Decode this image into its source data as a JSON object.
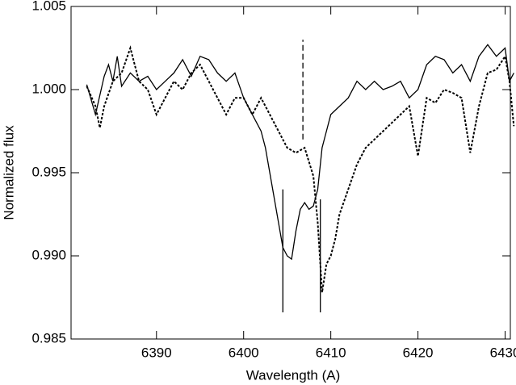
{
  "chart_data": {
    "type": "line",
    "xlabel": "Wavelength (A)",
    "ylabel": "Normalized flux",
    "xlim": [
      6380.2,
      6430.6
    ],
    "ylim": [
      0.985,
      1.005
    ],
    "xticks": [
      6390,
      6400,
      6410,
      6420,
      6430
    ],
    "yticks": [
      0.985,
      {
        "value": 0.99,
        "label": "0.990"
      },
      0.995,
      {
        "value": 1.0,
        "label": "1.000"
      },
      1.005
    ],
    "series": [
      {
        "color": "#000000",
        "style": "solid",
        "x": [
          6382,
          6383,
          6384,
          6384.5,
          6385,
          6385.5,
          6386,
          6387,
          6388,
          6389,
          6390,
          6391,
          6392,
          6393,
          6394,
          6395,
          6396,
          6397,
          6398,
          6399,
          6400,
          6401,
          6402,
          6402.5,
          6403,
          6403.5,
          6404,
          6404.5,
          6405,
          6405.5,
          6406,
          6406.5,
          6407,
          6407.5,
          6408,
          6408.5,
          6409,
          6409.5,
          6410,
          6411,
          6412,
          6413,
          6414,
          6415,
          6416,
          6417,
          6418,
          6419,
          6420,
          6421,
          6422,
          6423,
          6424,
          6425,
          6426,
          6427,
          6428,
          6429,
          6430,
          6430.5,
          6431
        ],
        "values": [
          1.0003,
          0.9985,
          1.0008,
          1.0015,
          1.0005,
          1.002,
          1.0002,
          1.001,
          1.0005,
          1.0008,
          1.0,
          1.0005,
          1.001,
          1.0018,
          1.0008,
          1.002,
          1.0018,
          1.001,
          1.0005,
          1.001,
          0.9995,
          0.9985,
          0.9975,
          0.9965,
          0.995,
          0.9935,
          0.992,
          0.9905,
          0.99,
          0.9898,
          0.9915,
          0.9928,
          0.9932,
          0.9928,
          0.993,
          0.994,
          0.9965,
          0.9975,
          0.9985,
          0.999,
          0.9995,
          1.0005,
          1.0,
          1.0005,
          1.0,
          1.0002,
          1.0005,
          0.9995,
          1.0,
          1.0015,
          1.002,
          1.0018,
          1.001,
          1.0015,
          1.0005,
          1.002,
          1.0027,
          1.002,
          1.0025,
          1.0005,
          1.001
        ]
      },
      {
        "color": "#000000",
        "style": "dotted",
        "x": [
          6382,
          6383,
          6383.5,
          6384,
          6385,
          6386,
          6387,
          6387.5,
          6388,
          6389,
          6390,
          6391,
          6392,
          6393,
          6394,
          6395,
          6396,
          6397,
          6398,
          6399,
          6400,
          6401,
          6402,
          6403,
          6404,
          6405,
          6406,
          6407,
          6408,
          6408.5,
          6409,
          6409.5,
          6410,
          6410.5,
          6411,
          6412,
          6413,
          6414,
          6415,
          6416,
          6417,
          6418,
          6419,
          6420,
          6421,
          6422,
          6423,
          6424,
          6425,
          6426,
          6427,
          6428,
          6429,
          6430,
          6430.5,
          6431
        ],
        "values": [
          1.0002,
          0.999,
          0.9977,
          0.999,
          1.0005,
          1.001,
          1.0025,
          1.0015,
          1.0005,
          1.0,
          0.9985,
          0.9995,
          1.0005,
          1.0,
          1.001,
          1.0015,
          1.0005,
          0.9995,
          0.9985,
          0.9995,
          0.9995,
          0.9985,
          0.9995,
          0.9985,
          0.9975,
          0.9965,
          0.9962,
          0.9965,
          0.9948,
          0.992,
          0.9878,
          0.9895,
          0.99,
          0.991,
          0.9925,
          0.994,
          0.9955,
          0.9965,
          0.997,
          0.9975,
          0.998,
          0.9985,
          0.999,
          0.996,
          0.9995,
          0.9992,
          1.0,
          0.9998,
          0.9995,
          0.9962,
          0.999,
          1.001,
          1.0012,
          1.002,
          1.0005,
          0.9978
        ]
      }
    ],
    "markers": [
      {
        "x": 6404.5,
        "ymin": 0.9866,
        "ymax": 0.994,
        "style": "solid"
      },
      {
        "x": 6408.8,
        "ymin": 0.9866,
        "ymax": 0.9934,
        "style": "solid"
      },
      {
        "x": 6406.8,
        "ymin": 0.997,
        "ymax": 1.003,
        "style": "dashed"
      }
    ]
  }
}
